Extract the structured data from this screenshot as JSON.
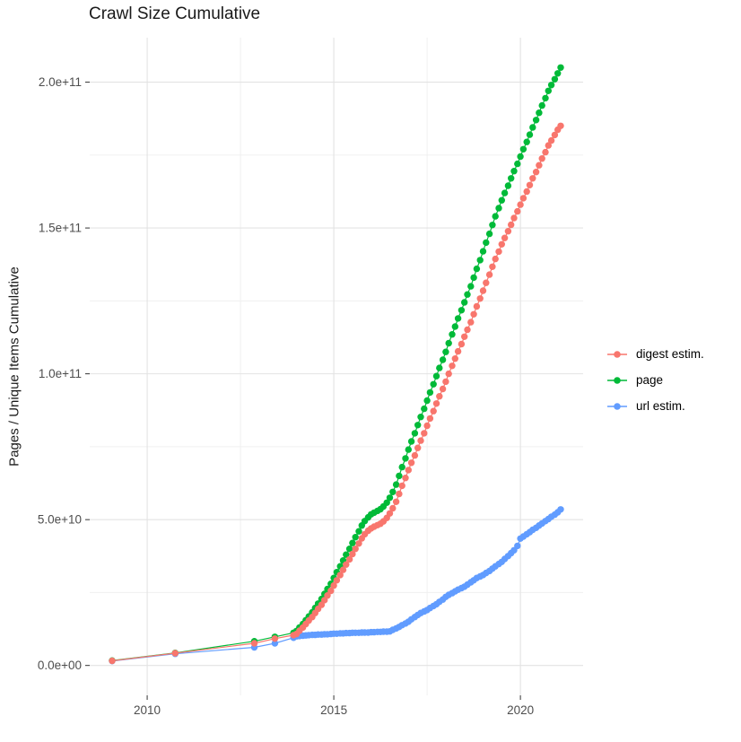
{
  "chart_data": {
    "type": "scatter",
    "title": "Crawl Size Cumulative",
    "xlabel": "",
    "ylabel": "Pages / Unique Items Cumulative",
    "legend_position": "right",
    "grid": true,
    "background": "#ffffff",
    "grid_major_color": "#e3e3e3",
    "grid_minor_color": "#f0f0f0",
    "tick_color": "#333333",
    "tick_label_color": "#4d4d4d",
    "value_scale": 10000000000.0,
    "xlim": [
      2008.46,
      2021.68
    ],
    "ylim_e10": [
      -1.025,
      21.525
    ],
    "x_ticks": [
      {
        "label": "2010",
        "year": 2010
      },
      {
        "label": "2015",
        "year": 2015
      },
      {
        "label": "2020",
        "year": 2020
      }
    ],
    "x_minor_ticks": [
      2012.5,
      2017.5
    ],
    "y_ticks": [
      {
        "label": "0.0e+00",
        "value_e10": 0
      },
      {
        "label": "5.0e+10",
        "value_e10": 5
      },
      {
        "label": "1.0e+11",
        "value_e10": 10
      },
      {
        "label": "1.5e+11",
        "value_e10": 15
      },
      {
        "label": "2.0e+11",
        "value_e10": 20
      }
    ],
    "y_minor_ticks_e10": [
      2.5,
      7.5,
      12.5,
      17.5
    ],
    "series": [
      {
        "name": "url estim.",
        "color": "#619CFF",
        "points": [
          [
            2009.06,
            0.15
          ],
          [
            2010.75,
            0.4
          ],
          [
            2012.87,
            0.62
          ],
          [
            2013.42,
            0.76
          ],
          [
            2013.92,
            0.95
          ],
          [
            2014.0,
            1.0
          ],
          [
            2014.08,
            1.01
          ],
          [
            2014.17,
            1.02
          ],
          [
            2014.25,
            1.03
          ],
          [
            2014.33,
            1.04
          ],
          [
            2014.42,
            1.05
          ],
          [
            2014.5,
            1.05
          ],
          [
            2014.58,
            1.06
          ],
          [
            2014.67,
            1.06
          ],
          [
            2014.75,
            1.07
          ],
          [
            2014.83,
            1.07
          ],
          [
            2014.92,
            1.08
          ],
          [
            2015.0,
            1.09
          ],
          [
            2015.08,
            1.09
          ],
          [
            2015.17,
            1.1
          ],
          [
            2015.25,
            1.1
          ],
          [
            2015.33,
            1.11
          ],
          [
            2015.42,
            1.11
          ],
          [
            2015.5,
            1.12
          ],
          [
            2015.58,
            1.12
          ],
          [
            2015.67,
            1.12
          ],
          [
            2015.75,
            1.13
          ],
          [
            2015.83,
            1.13
          ],
          [
            2015.92,
            1.13
          ],
          [
            2016.0,
            1.14
          ],
          [
            2016.08,
            1.14
          ],
          [
            2016.17,
            1.15
          ],
          [
            2016.25,
            1.15
          ],
          [
            2016.33,
            1.16
          ],
          [
            2016.42,
            1.16
          ],
          [
            2016.5,
            1.17
          ],
          [
            2016.58,
            1.22
          ],
          [
            2016.67,
            1.27
          ],
          [
            2016.75,
            1.32
          ],
          [
            2016.83,
            1.38
          ],
          [
            2016.92,
            1.44
          ],
          [
            2017.0,
            1.5
          ],
          [
            2017.08,
            1.58
          ],
          [
            2017.17,
            1.66
          ],
          [
            2017.25,
            1.73
          ],
          [
            2017.33,
            1.8
          ],
          [
            2017.42,
            1.85
          ],
          [
            2017.5,
            1.9
          ],
          [
            2017.58,
            1.97
          ],
          [
            2017.67,
            2.04
          ],
          [
            2017.75,
            2.1
          ],
          [
            2017.83,
            2.18
          ],
          [
            2017.92,
            2.26
          ],
          [
            2018.0,
            2.35
          ],
          [
            2018.08,
            2.42
          ],
          [
            2018.17,
            2.48
          ],
          [
            2018.25,
            2.54
          ],
          [
            2018.33,
            2.6
          ],
          [
            2018.42,
            2.65
          ],
          [
            2018.5,
            2.7
          ],
          [
            2018.58,
            2.77
          ],
          [
            2018.67,
            2.85
          ],
          [
            2018.75,
            2.92
          ],
          [
            2018.83,
            3.0
          ],
          [
            2018.92,
            3.05
          ],
          [
            2019.0,
            3.1
          ],
          [
            2019.08,
            3.17
          ],
          [
            2019.17,
            3.24
          ],
          [
            2019.25,
            3.32
          ],
          [
            2019.33,
            3.4
          ],
          [
            2019.42,
            3.48
          ],
          [
            2019.5,
            3.55
          ],
          [
            2019.58,
            3.65
          ],
          [
            2019.67,
            3.75
          ],
          [
            2019.75,
            3.85
          ],
          [
            2019.83,
            3.95
          ],
          [
            2019.92,
            4.1
          ],
          [
            2020.0,
            4.35
          ],
          [
            2020.08,
            4.42
          ],
          [
            2020.17,
            4.5
          ],
          [
            2020.25,
            4.57
          ],
          [
            2020.33,
            4.65
          ],
          [
            2020.42,
            4.72
          ],
          [
            2020.5,
            4.8
          ],
          [
            2020.58,
            4.87
          ],
          [
            2020.67,
            4.95
          ],
          [
            2020.75,
            5.02
          ],
          [
            2020.83,
            5.1
          ],
          [
            2020.92,
            5.17
          ],
          [
            2021.0,
            5.25
          ],
          [
            2021.08,
            5.35
          ]
        ]
      },
      {
        "name": "page",
        "color": "#00BA38",
        "points": [
          [
            2009.06,
            0.17
          ],
          [
            2010.75,
            0.43
          ],
          [
            2012.87,
            0.83
          ],
          [
            2013.42,
            0.98
          ],
          [
            2013.92,
            1.12
          ],
          [
            2014.0,
            1.18
          ],
          [
            2014.08,
            1.3
          ],
          [
            2014.17,
            1.42
          ],
          [
            2014.25,
            1.55
          ],
          [
            2014.33,
            1.68
          ],
          [
            2014.42,
            1.82
          ],
          [
            2014.5,
            1.97
          ],
          [
            2014.58,
            2.12
          ],
          [
            2014.67,
            2.28
          ],
          [
            2014.75,
            2.45
          ],
          [
            2014.83,
            2.62
          ],
          [
            2014.92,
            2.8
          ],
          [
            2015.0,
            3.0
          ],
          [
            2015.08,
            3.2
          ],
          [
            2015.17,
            3.4
          ],
          [
            2015.25,
            3.6
          ],
          [
            2015.33,
            3.8
          ],
          [
            2015.42,
            4.0
          ],
          [
            2015.5,
            4.2
          ],
          [
            2015.58,
            4.4
          ],
          [
            2015.67,
            4.6
          ],
          [
            2015.75,
            4.8
          ],
          [
            2015.83,
            4.95
          ],
          [
            2015.92,
            5.08
          ],
          [
            2016.0,
            5.18
          ],
          [
            2016.08,
            5.24
          ],
          [
            2016.17,
            5.3
          ],
          [
            2016.25,
            5.36
          ],
          [
            2016.33,
            5.45
          ],
          [
            2016.42,
            5.58
          ],
          [
            2016.5,
            5.75
          ],
          [
            2016.58,
            5.95
          ],
          [
            2016.67,
            6.2
          ],
          [
            2016.75,
            6.5
          ],
          [
            2016.83,
            6.8
          ],
          [
            2016.92,
            7.1
          ],
          [
            2017.0,
            7.4
          ],
          [
            2017.08,
            7.68
          ],
          [
            2017.17,
            7.96
          ],
          [
            2017.25,
            8.24
          ],
          [
            2017.33,
            8.52
          ],
          [
            2017.42,
            8.8
          ],
          [
            2017.5,
            9.08
          ],
          [
            2017.58,
            9.36
          ],
          [
            2017.67,
            9.64
          ],
          [
            2017.75,
            9.92
          ],
          [
            2017.83,
            10.2
          ],
          [
            2017.92,
            10.48
          ],
          [
            2018.0,
            10.75
          ],
          [
            2018.08,
            11.05
          ],
          [
            2018.17,
            11.35
          ],
          [
            2018.25,
            11.62
          ],
          [
            2018.33,
            11.9
          ],
          [
            2018.42,
            12.18
          ],
          [
            2018.5,
            12.45
          ],
          [
            2018.58,
            12.72
          ],
          [
            2018.67,
            13.0
          ],
          [
            2018.75,
            13.3
          ],
          [
            2018.83,
            13.6
          ],
          [
            2018.92,
            13.9
          ],
          [
            2019.0,
            14.2
          ],
          [
            2019.08,
            14.5
          ],
          [
            2019.17,
            14.8
          ],
          [
            2019.25,
            15.1
          ],
          [
            2019.33,
            15.4
          ],
          [
            2019.42,
            15.68
          ],
          [
            2019.5,
            15.95
          ],
          [
            2019.58,
            16.2
          ],
          [
            2019.67,
            16.45
          ],
          [
            2019.75,
            16.7
          ],
          [
            2019.83,
            16.95
          ],
          [
            2019.92,
            17.2
          ],
          [
            2020.0,
            17.45
          ],
          [
            2020.08,
            17.7
          ],
          [
            2020.17,
            17.95
          ],
          [
            2020.25,
            18.2
          ],
          [
            2020.33,
            18.45
          ],
          [
            2020.42,
            18.7
          ],
          [
            2020.5,
            18.95
          ],
          [
            2020.58,
            19.2
          ],
          [
            2020.67,
            19.45
          ],
          [
            2020.75,
            19.7
          ],
          [
            2020.83,
            19.9
          ],
          [
            2020.92,
            20.1
          ],
          [
            2021.0,
            20.3
          ],
          [
            2021.08,
            20.5
          ]
        ]
      },
      {
        "name": "digest estim.",
        "color": "#F8766D",
        "points": [
          [
            2009.06,
            0.16
          ],
          [
            2010.75,
            0.42
          ],
          [
            2012.87,
            0.76
          ],
          [
            2013.42,
            0.92
          ],
          [
            2013.92,
            1.04
          ],
          [
            2014.0,
            1.08
          ],
          [
            2014.08,
            1.19
          ],
          [
            2014.17,
            1.3
          ],
          [
            2014.25,
            1.42
          ],
          [
            2014.33,
            1.54
          ],
          [
            2014.42,
            1.66
          ],
          [
            2014.5,
            1.8
          ],
          [
            2014.58,
            1.94
          ],
          [
            2014.67,
            2.08
          ],
          [
            2014.75,
            2.24
          ],
          [
            2014.83,
            2.4
          ],
          [
            2014.92,
            2.56
          ],
          [
            2015.0,
            2.74
          ],
          [
            2015.08,
            2.92
          ],
          [
            2015.17,
            3.1
          ],
          [
            2015.25,
            3.28
          ],
          [
            2015.33,
            3.46
          ],
          [
            2015.42,
            3.64
          ],
          [
            2015.5,
            3.82
          ],
          [
            2015.58,
            4.0
          ],
          [
            2015.67,
            4.18
          ],
          [
            2015.75,
            4.36
          ],
          [
            2015.83,
            4.5
          ],
          [
            2015.92,
            4.62
          ],
          [
            2016.0,
            4.7
          ],
          [
            2016.08,
            4.76
          ],
          [
            2016.17,
            4.81
          ],
          [
            2016.25,
            4.86
          ],
          [
            2016.33,
            4.94
          ],
          [
            2016.42,
            5.06
          ],
          [
            2016.5,
            5.21
          ],
          [
            2016.58,
            5.39
          ],
          [
            2016.67,
            5.61
          ],
          [
            2016.75,
            5.88
          ],
          [
            2016.83,
            6.16
          ],
          [
            2016.92,
            6.43
          ],
          [
            2017.0,
            6.7
          ],
          [
            2017.08,
            6.95
          ],
          [
            2017.17,
            7.2
          ],
          [
            2017.25,
            7.46
          ],
          [
            2017.33,
            7.71
          ],
          [
            2017.42,
            7.96
          ],
          [
            2017.5,
            8.22
          ],
          [
            2017.58,
            8.47
          ],
          [
            2017.67,
            8.72
          ],
          [
            2017.75,
            8.98
          ],
          [
            2017.83,
            9.23
          ],
          [
            2017.92,
            9.48
          ],
          [
            2018.0,
            9.73
          ],
          [
            2018.08,
            10.0
          ],
          [
            2018.17,
            10.27
          ],
          [
            2018.25,
            10.52
          ],
          [
            2018.33,
            10.77
          ],
          [
            2018.42,
            11.02
          ],
          [
            2018.5,
            11.27
          ],
          [
            2018.58,
            11.51
          ],
          [
            2018.67,
            11.77
          ],
          [
            2018.75,
            12.04
          ],
          [
            2018.83,
            12.31
          ],
          [
            2018.92,
            12.58
          ],
          [
            2019.0,
            12.85
          ],
          [
            2019.08,
            13.12
          ],
          [
            2019.17,
            13.4
          ],
          [
            2019.25,
            13.67
          ],
          [
            2019.33,
            13.94
          ],
          [
            2019.42,
            14.19
          ],
          [
            2019.5,
            14.44
          ],
          [
            2019.58,
            14.66
          ],
          [
            2019.67,
            14.89
          ],
          [
            2019.75,
            15.11
          ],
          [
            2019.83,
            15.34
          ],
          [
            2019.92,
            15.57
          ],
          [
            2020.0,
            15.8
          ],
          [
            2020.08,
            16.02
          ],
          [
            2020.17,
            16.25
          ],
          [
            2020.25,
            16.47
          ],
          [
            2020.33,
            16.7
          ],
          [
            2020.42,
            16.92
          ],
          [
            2020.5,
            17.15
          ],
          [
            2020.58,
            17.38
          ],
          [
            2020.67,
            17.6
          ],
          [
            2020.75,
            17.83
          ],
          [
            2020.83,
            18.0
          ],
          [
            2020.92,
            18.19
          ],
          [
            2021.0,
            18.37
          ],
          [
            2021.08,
            18.5
          ]
        ]
      }
    ],
    "legend_order": [
      "digest estim.",
      "page",
      "url estim."
    ]
  },
  "legend": {
    "items": [
      {
        "label": "digest estim.",
        "color": "#F8766D"
      },
      {
        "label": "page",
        "color": "#00BA38"
      },
      {
        "label": "url estim.",
        "color": "#619CFF"
      }
    ]
  }
}
